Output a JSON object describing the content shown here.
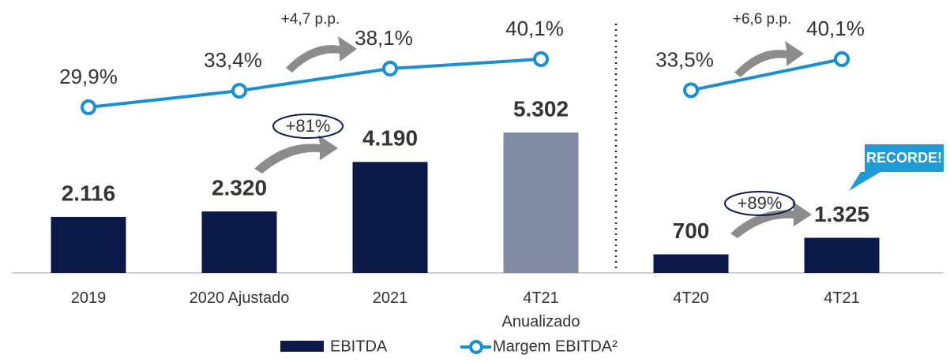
{
  "chart_data": [
    {
      "type": "bar",
      "categories": [
        "2019",
        "2020 Ajustado",
        "2021",
        "4T21\nAnualizado"
      ],
      "series": [
        {
          "name": "EBITDA",
          "color": "#0b1a48",
          "colors": [
            "#0b1a48",
            "#0b1a48",
            "#0b1a48",
            "#7f8aa3"
          ],
          "values": [
            2116,
            2320,
            4190,
            5302
          ],
          "value_labels": [
            "2.116",
            "2.320",
            "4.190",
            "5.302"
          ]
        },
        {
          "name": "Margem EBITDA²",
          "type": "line",
          "color": "#1a8fd0",
          "values": [
            29.9,
            33.4,
            38.1,
            40.1
          ],
          "value_labels": [
            "29,9%",
            "33,4%",
            "38,1%",
            "40,1%"
          ]
        }
      ],
      "annotations": [
        "+4,7 p.p.",
        "+81%"
      ]
    },
    {
      "type": "bar",
      "categories": [
        "4T20",
        "4T21"
      ],
      "series": [
        {
          "color": "#0b1a48",
          "colors": [
            "#0b1a48",
            "#0b1a48"
          ],
          "values": [
            700,
            1325
          ],
          "value_labels": [
            "700",
            "1.325"
          ]
        },
        {
          "type": "line",
          "color": "#1a8fd0",
          "values": [
            33.5,
            40.1
          ],
          "value_labels": [
            "33,5%",
            "40,1%"
          ]
        }
      ],
      "annotations": [
        "+6,6 p.p.",
        "+89%",
        "RECORDE!"
      ]
    }
  ]
}
